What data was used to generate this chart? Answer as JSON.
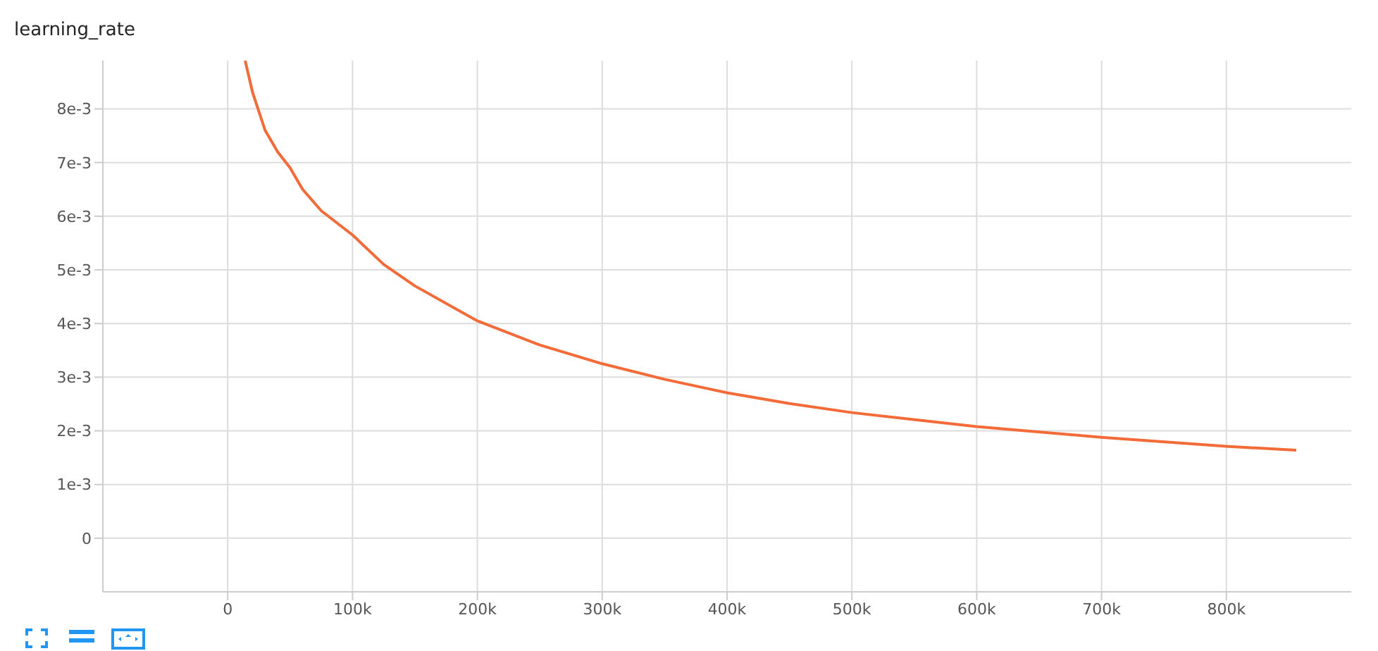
{
  "chart_data": {
    "type": "line",
    "title": "learning_rate",
    "x": [
      14000,
      20000,
      30000,
      40000,
      50000,
      60000,
      75000,
      100000,
      125000,
      150000,
      200000,
      250000,
      300000,
      350000,
      400000,
      450000,
      500000,
      600000,
      700000,
      800000,
      856000
    ],
    "series": [
      {
        "color": "#f26b38",
        "values": [
          0.0089,
          0.0083,
          0.0076,
          0.0072,
          0.0069,
          0.0065,
          0.0061,
          0.00565,
          0.0051,
          0.0047,
          0.00405,
          0.0036,
          0.00325,
          0.00296,
          0.00271,
          0.00251,
          0.00234,
          0.00208,
          0.00188,
          0.00171,
          0.00164
        ]
      }
    ],
    "xlim": [
      -100000,
      900000
    ],
    "xticks": [
      0,
      {
        "value": 100000,
        "label": "100k"
      },
      {
        "value": 200000,
        "label": "200k"
      },
      {
        "value": 300000,
        "label": "300k"
      },
      {
        "value": 400000,
        "label": "400k"
      },
      {
        "value": 500000,
        "label": "500k"
      },
      {
        "value": 600000,
        "label": "600k"
      },
      {
        "value": 700000,
        "label": "700k"
      },
      {
        "value": 800000,
        "label": "800k"
      }
    ],
    "ylim": [
      -0.001,
      0.0089
    ],
    "yticks": [
      0,
      {
        "value": 0.001,
        "label": "1e-3"
      },
      {
        "value": 0.002,
        "label": "2e-3"
      },
      {
        "value": 0.003,
        "label": "3e-3"
      },
      {
        "value": 0.004,
        "label": "4e-3"
      },
      {
        "value": 0.005,
        "label": "5e-3"
      },
      {
        "value": 0.006,
        "label": "6e-3"
      },
      {
        "value": 0.007,
        "label": "7e-3"
      },
      {
        "value": 0.008,
        "label": "8e-3"
      }
    ],
    "grid": true,
    "marker": "none",
    "line_style": "solid"
  }
}
